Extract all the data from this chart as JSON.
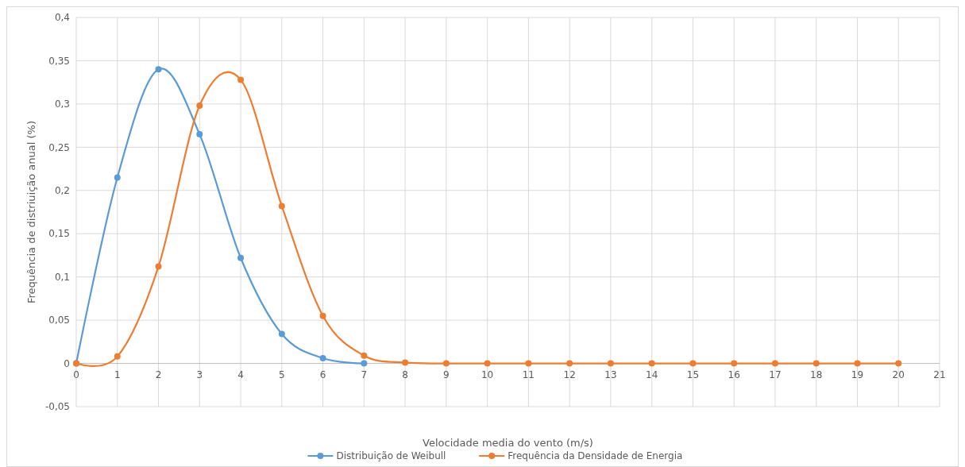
{
  "chart_data": {
    "type": "line",
    "xlabel": "Velocidade media do vento (m/s)",
    "ylabel": "Frequência de distriuição anual (%)",
    "x": [
      0,
      1,
      2,
      3,
      4,
      5,
      6,
      7,
      8,
      9,
      10,
      11,
      12,
      13,
      14,
      15,
      16,
      17,
      18,
      19,
      20
    ],
    "series": [
      {
        "name": "Distribuição de Weibull",
        "color": "#5b9bd5",
        "values": [
          0,
          0.215,
          0.34,
          0.265,
          0.122,
          0.034,
          0.006,
          0,
          null,
          null,
          null,
          null,
          null,
          null,
          null,
          null,
          null,
          null,
          null,
          null,
          null
        ]
      },
      {
        "name": "Frequência da Densidade de Energia",
        "color": "#ed7d31",
        "values": [
          0,
          0.008,
          0.112,
          0.298,
          0.328,
          0.182,
          0.055,
          0.009,
          0.001,
          0,
          0,
          0,
          0,
          0,
          0,
          0,
          0,
          0,
          0,
          0,
          0
        ]
      }
    ],
    "xlim": [
      0,
      21
    ],
    "xticks": [
      0,
      1,
      2,
      3,
      4,
      5,
      6,
      7,
      8,
      9,
      10,
      11,
      12,
      13,
      14,
      15,
      16,
      17,
      18,
      19,
      20,
      21
    ],
    "ylim": [
      -0.05,
      0.4
    ],
    "yticks": [
      {
        "value": -0.05,
        "label": "-0,05"
      },
      {
        "value": 0,
        "label": "0"
      },
      {
        "value": 0.05,
        "label": "0,05"
      },
      {
        "value": 0.1,
        "label": "0,1"
      },
      {
        "value": 0.15,
        "label": "0,15"
      },
      {
        "value": 0.2,
        "label": "0,2"
      },
      {
        "value": 0.25,
        "label": "0,25"
      },
      {
        "value": 0.3,
        "label": "0,3"
      },
      {
        "value": 0.35,
        "label": "0,35"
      },
      {
        "value": 0.4,
        "label": "0,4"
      }
    ],
    "grid": true,
    "legend": "bottom",
    "marker": "circle",
    "line_style": "solid"
  }
}
